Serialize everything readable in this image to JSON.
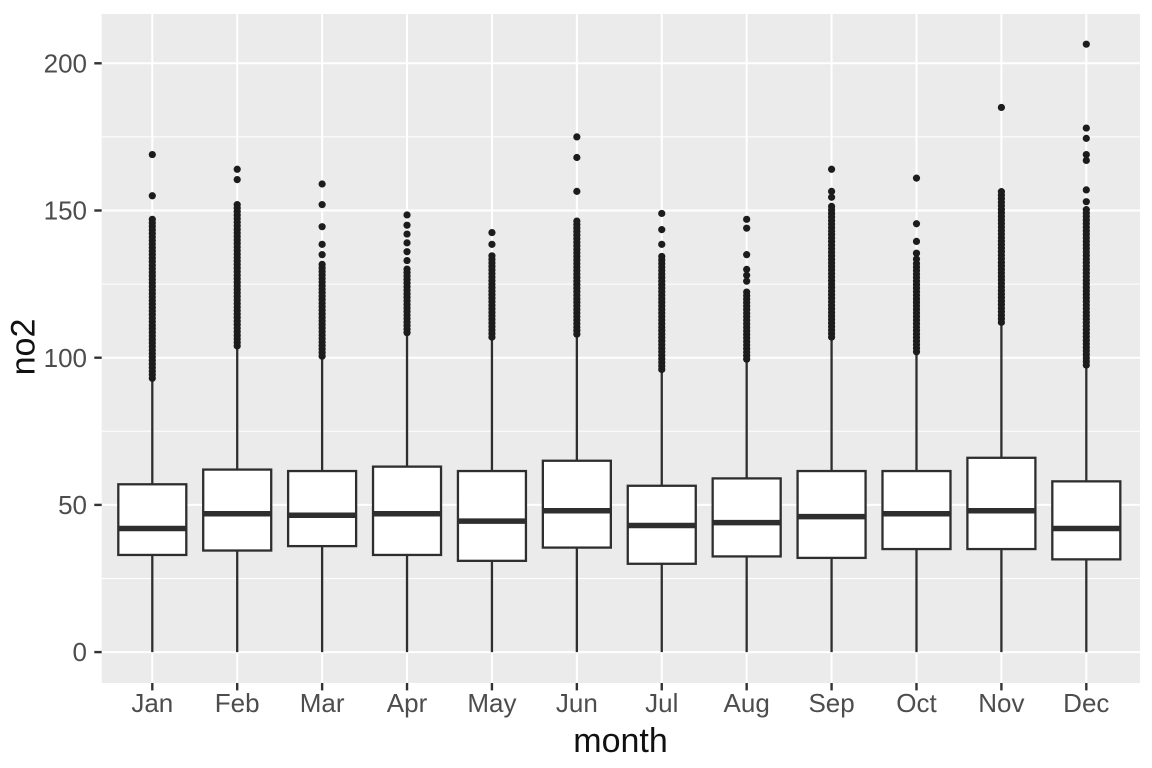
{
  "chart_data": {
    "type": "boxplot",
    "title": "",
    "xlabel": "month",
    "ylabel": "no2",
    "categories": [
      "Jan",
      "Feb",
      "Mar",
      "Apr",
      "May",
      "Jun",
      "Jul",
      "Aug",
      "Sep",
      "Oct",
      "Nov",
      "Dec"
    ],
    "y_tick_labels": [
      "0",
      "50",
      "100",
      "150",
      "200"
    ],
    "y_ticks": [
      0,
      50,
      100,
      150,
      200
    ],
    "y_minor_ticks": [
      25,
      75,
      125,
      175
    ],
    "ylim": [
      -10.5,
      216.8
    ],
    "legend": "none",
    "grid": {
      "major": true,
      "minor_horizontal": true,
      "vertical_major": true
    },
    "colors": {
      "panel_bg": "#EBEBEB",
      "grid": "#FFFFFF",
      "box_fill": "#FFFFFF",
      "box_stroke": "#2E2E2E",
      "dot": "#1C1C1C",
      "tick_mark": "#333333",
      "axis_text": "#4D4D4D",
      "axis_title": "#111111"
    },
    "series": [
      {
        "month": "Jan",
        "whisker_low": 0,
        "q1": 33,
        "median": 42,
        "q3": 57,
        "whisker_high": 92,
        "outliers_dense": {
          "from": 93,
          "to": 147,
          "step": 1.2
        },
        "outliers": [
          155,
          169
        ]
      },
      {
        "month": "Feb",
        "whisker_low": 0,
        "q1": 34.5,
        "median": 47,
        "q3": 62,
        "whisker_high": 103,
        "outliers_dense": {
          "from": 104,
          "to": 153,
          "step": 1.2
        },
        "outliers": [
          160.5,
          164
        ]
      },
      {
        "month": "Mar",
        "whisker_low": 0,
        "q1": 36,
        "median": 46.5,
        "q3": 61.5,
        "whisker_high": 99.5,
        "outliers_dense": {
          "from": 100.5,
          "to": 132,
          "step": 1.2
        },
        "outliers": [
          135,
          138.5,
          144.5,
          152,
          159
        ]
      },
      {
        "month": "Apr",
        "whisker_low": 0,
        "q1": 33,
        "median": 47,
        "q3": 63,
        "whisker_high": 107.5,
        "outliers_dense": {
          "from": 108.5,
          "to": 131,
          "step": 1.2
        },
        "outliers": [
          133,
          136,
          139,
          142,
          145,
          148.5
        ]
      },
      {
        "month": "May",
        "whisker_low": 0,
        "q1": 31,
        "median": 44.5,
        "q3": 61.5,
        "whisker_high": 106,
        "outliers_dense": {
          "from": 107,
          "to": 135,
          "step": 1.2
        },
        "outliers": [
          138.5,
          142.5
        ]
      },
      {
        "month": "Jun",
        "whisker_low": 0,
        "q1": 35.5,
        "median": 48,
        "q3": 65,
        "whisker_high": 107,
        "outliers_dense": {
          "from": 108,
          "to": 147,
          "step": 1.2
        },
        "outliers": [
          156.5,
          168,
          175
        ]
      },
      {
        "month": "Jul",
        "whisker_low": 0,
        "q1": 30,
        "median": 43,
        "q3": 56.5,
        "whisker_high": 95,
        "outliers_dense": {
          "from": 96,
          "to": 135,
          "step": 1.2
        },
        "outliers": [
          138.5,
          143.5,
          149
        ]
      },
      {
        "month": "Aug",
        "whisker_low": 0,
        "q1": 32.5,
        "median": 44,
        "q3": 59,
        "whisker_high": 98.5,
        "outliers_dense": {
          "from": 99.5,
          "to": 123,
          "step": 1.2
        },
        "outliers": [
          126,
          128,
          130,
          135,
          144,
          147
        ]
      },
      {
        "month": "Sep",
        "whisker_low": 0,
        "q1": 32,
        "median": 46,
        "q3": 61.5,
        "whisker_high": 106,
        "outliers_dense": {
          "from": 107,
          "to": 152,
          "step": 1.2
        },
        "outliers": [
          154.5,
          156.5,
          164
        ]
      },
      {
        "month": "Oct",
        "whisker_low": 0,
        "q1": 35,
        "median": 47,
        "q3": 61.5,
        "whisker_high": 101,
        "outliers_dense": {
          "from": 102,
          "to": 132,
          "step": 1.2
        },
        "outliers": [
          133.5,
          135.5,
          139.5,
          145.5,
          161
        ]
      },
      {
        "month": "Nov",
        "whisker_low": 0,
        "q1": 35,
        "median": 48,
        "q3": 66,
        "whisker_high": 111,
        "outliers_dense": {
          "from": 112,
          "to": 157,
          "step": 1.2
        },
        "outliers": [
          185
        ]
      },
      {
        "month": "Dec",
        "whisker_low": 0,
        "q1": 31.5,
        "median": 42,
        "q3": 58,
        "whisker_high": 96.5,
        "outliers_dense": {
          "from": 97.5,
          "to": 151,
          "step": 1.2
        },
        "outliers": [
          153,
          157,
          167,
          169,
          174.5,
          178,
          206.5
        ]
      }
    ]
  }
}
